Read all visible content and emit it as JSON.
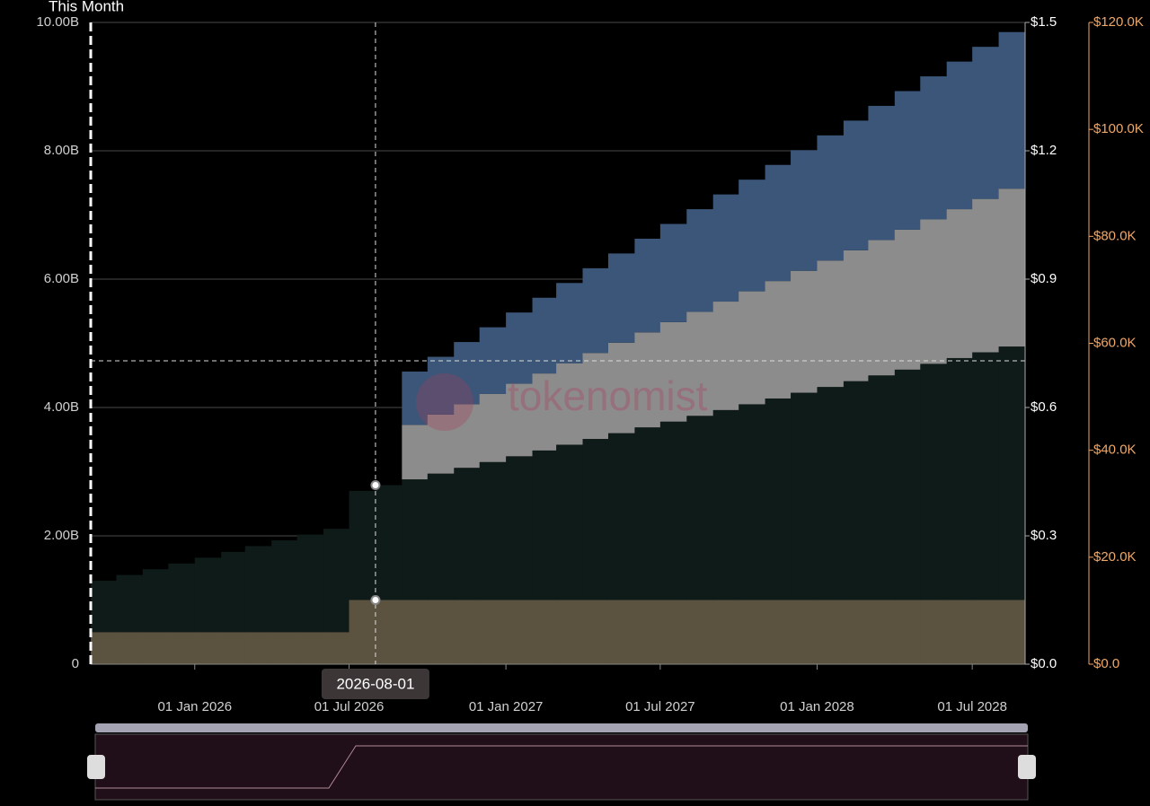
{
  "chart_data": {
    "type": "stacked-step-area",
    "current_label": "This Month",
    "watermark": "tokenomist",
    "tooltip": {
      "date": "2026-08-01"
    },
    "x": [
      "2025-09-01",
      "2025-10-01",
      "2025-11-01",
      "2025-12-01",
      "2026-01-01",
      "2026-02-01",
      "2026-03-01",
      "2026-04-01",
      "2026-05-01",
      "2026-06-01",
      "2026-07-01",
      "2026-08-01",
      "2026-09-01",
      "2026-10-01",
      "2026-11-01",
      "2026-12-01",
      "2027-01-01",
      "2027-02-01",
      "2027-03-01",
      "2027-04-01",
      "2027-05-01",
      "2027-06-01",
      "2027-07-01",
      "2027-08-01",
      "2027-09-01",
      "2027-10-01",
      "2027-11-01",
      "2027-12-01",
      "2028-01-01",
      "2028-02-01",
      "2028-03-01",
      "2028-04-01",
      "2028-05-01",
      "2028-06-01",
      "2028-07-01",
      "2028-08-01"
    ],
    "xlim": [
      "2025-09-01",
      "2028-09-01"
    ],
    "xticks": [
      {
        "value": "2026-01-01",
        "label": "01 Jan 2026"
      },
      {
        "value": "2026-07-01",
        "label": "01 Jul 2026"
      },
      {
        "value": "2027-01-01",
        "label": "01 Jan 2027"
      },
      {
        "value": "2027-07-01",
        "label": "01 Jul 2027"
      },
      {
        "value": "2028-01-01",
        "label": "01 Jan 2028"
      },
      {
        "value": "2028-07-01",
        "label": "01 Jul 2028"
      }
    ],
    "series": [
      {
        "color": "#5b5340",
        "values": [
          0.5,
          0.5,
          0.5,
          0.5,
          0.5,
          0.5,
          0.5,
          0.5,
          0.5,
          0.5,
          1.0,
          1.0,
          1.0,
          1.0,
          1.0,
          1.0,
          1.0,
          1.0,
          1.0,
          1.0,
          1.0,
          1.0,
          1.0,
          1.0,
          1.0,
          1.0,
          1.0,
          1.0,
          1.0,
          1.0,
          1.0,
          1.0,
          1.0,
          1.0,
          1.0,
          1.0
        ]
      },
      {
        "color": "#0f1b18",
        "values": [
          0.8,
          0.89,
          0.98,
          1.07,
          1.16,
          1.25,
          1.34,
          1.43,
          1.52,
          1.61,
          1.7,
          1.79,
          1.88,
          1.97,
          2.06,
          2.15,
          2.24,
          2.33,
          2.42,
          2.51,
          2.6,
          2.69,
          2.78,
          2.87,
          2.96,
          3.05,
          3.14,
          3.23,
          3.32,
          3.41,
          3.5,
          3.59,
          3.68,
          3.77,
          3.86,
          3.95
        ]
      },
      {
        "color": "#8c8c8c",
        "values": [
          null,
          null,
          null,
          null,
          null,
          null,
          null,
          null,
          null,
          null,
          null,
          null,
          0.85,
          0.92,
          0.99,
          1.06,
          1.13,
          1.2,
          1.27,
          1.34,
          1.41,
          1.48,
          1.55,
          1.62,
          1.69,
          1.76,
          1.83,
          1.9,
          1.97,
          2.04,
          2.11,
          2.18,
          2.25,
          2.32,
          2.39,
          2.46
        ]
      },
      {
        "color": "#3b5678",
        "values": [
          null,
          null,
          null,
          null,
          null,
          null,
          null,
          null,
          null,
          null,
          null,
          null,
          0.83,
          0.9,
          0.97,
          1.04,
          1.11,
          1.18,
          1.25,
          1.32,
          1.39,
          1.46,
          1.53,
          1.6,
          1.67,
          1.74,
          1.81,
          1.88,
          1.95,
          2.02,
          2.09,
          2.16,
          2.23,
          2.3,
          2.37,
          2.44
        ]
      }
    ],
    "ylim": [
      0,
      10
    ],
    "yticks": [
      {
        "value": 0,
        "label": "0"
      },
      {
        "value": 2,
        "label": "2.00B"
      },
      {
        "value": 4,
        "label": "4.00B"
      },
      {
        "value": 6,
        "label": "6.00B"
      },
      {
        "value": 8,
        "label": "8.00B"
      },
      {
        "value": 10,
        "label": "10.00B"
      }
    ],
    "y2lim": [
      0,
      1.5
    ],
    "y2ticks": [
      {
        "value": 0,
        "label": "$0.0"
      },
      {
        "value": 0.3,
        "label": "$0.3"
      },
      {
        "value": 0.6,
        "label": "$0.6"
      },
      {
        "value": 0.9,
        "label": "$0.9"
      },
      {
        "value": 1.2,
        "label": "$1.2"
      },
      {
        "value": 1.5,
        "label": "$1.5"
      }
    ],
    "y3lim": [
      0,
      120000
    ],
    "y3ticks": [
      {
        "value": 0,
        "label": "$0.0"
      },
      {
        "value": 20000,
        "label": "$20.0K"
      },
      {
        "value": 40000,
        "label": "$40.0K"
      },
      {
        "value": 60000,
        "label": "$60.0K"
      },
      {
        "value": 80000,
        "label": "$80.0K"
      },
      {
        "value": 100000,
        "label": "$100.0K"
      },
      {
        "value": 120000,
        "label": "$120.0K"
      }
    ],
    "y3color": "#f0a868",
    "grid": true
  }
}
